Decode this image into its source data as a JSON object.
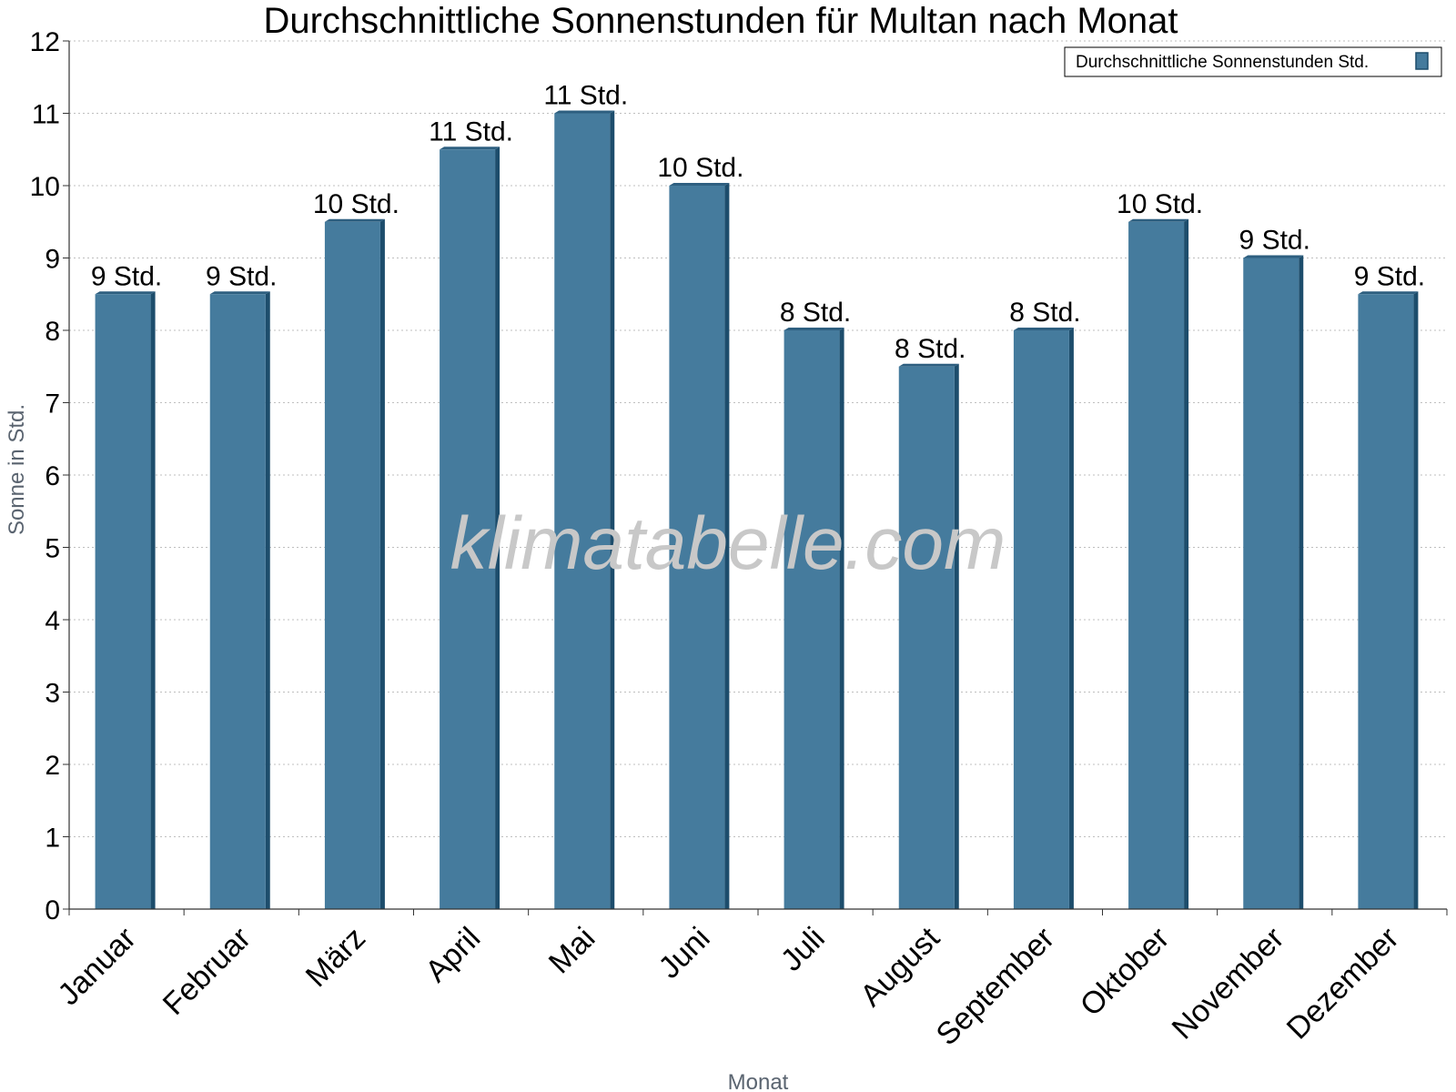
{
  "colors": {
    "bar_face": "#457b9d",
    "bar_edge": "#1d4d6c",
    "bar_top": "#2e5f80",
    "grid": "#bfbfbf",
    "axis": "#333333",
    "watermark": "#c8c8c8"
  },
  "watermark": "klimatabelle.com",
  "chart_data": {
    "type": "bar",
    "title": "Durchschnittliche Sonnenstunden für Multan nach Monat",
    "xlabel": "Monat",
    "ylabel": "Sonne in Std.",
    "ylim": [
      0,
      12
    ],
    "yticks": [
      "0",
      "1",
      "2",
      "3",
      "4",
      "5",
      "6",
      "7",
      "8",
      "9",
      "10",
      "11",
      "12"
    ],
    "grid": "horizontal dotted",
    "legend_position": "top-right",
    "categories": [
      "Januar",
      "Februar",
      "März",
      "April",
      "Mai",
      "Juni",
      "Juli",
      "August",
      "September",
      "Oktober",
      "November",
      "Dezember"
    ],
    "series": [
      {
        "name": "Durchschnittliche Sonnenstunden Std.",
        "values": [
          8.5,
          8.5,
          9.5,
          10.5,
          11,
          10,
          8,
          7.5,
          8,
          9.5,
          9,
          8.5
        ],
        "labels": [
          "9 Std.",
          "9 Std.",
          "10 Std.",
          "11 Std.",
          "11 Std.",
          "10 Std.",
          "8 Std.",
          "8 Std.",
          "8 Std.",
          "10 Std.",
          "9 Std.",
          "9 Std."
        ]
      }
    ]
  }
}
